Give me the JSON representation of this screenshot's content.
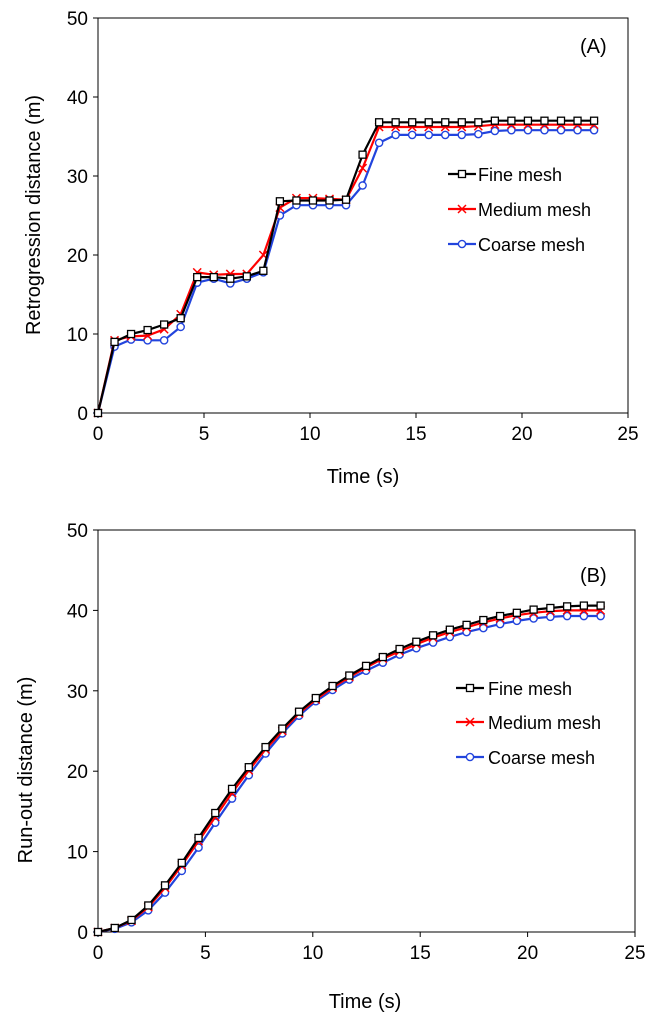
{
  "colors": {
    "fine": "#000000",
    "medium": "#ff0000",
    "coarse": "#2244dd"
  },
  "chart_data": [
    {
      "type": "line",
      "panel_label": "(A)",
      "xlabel": "Time (s)",
      "ylabel": "Retrogression distance (m)",
      "xlim": [
        0,
        25
      ],
      "ylim": [
        0,
        50
      ],
      "xticks": [
        "0",
        "5",
        "10",
        "15",
        "20",
        "25"
      ],
      "yticks": [
        "0",
        "10",
        "20",
        "30",
        "40",
        "50"
      ],
      "legend_position": "right",
      "x": [
        0,
        0.78,
        1.56,
        2.34,
        3.12,
        3.9,
        4.68,
        5.46,
        6.24,
        7.02,
        7.8,
        8.58,
        9.36,
        10.14,
        10.92,
        11.7,
        12.48,
        13.26,
        14.04,
        14.82,
        15.6,
        16.38,
        17.16,
        17.94,
        18.72,
        19.5,
        20.28,
        21.06,
        21.84,
        22.62,
        23.4
      ],
      "series": [
        {
          "name": "Fine mesh",
          "color_key": "fine",
          "marker": "square",
          "values": [
            0,
            9.0,
            10.0,
            10.5,
            11.2,
            12.0,
            17.2,
            17.2,
            17.0,
            17.3,
            18.0,
            26.8,
            26.9,
            26.9,
            26.9,
            27.0,
            32.7,
            36.8,
            36.8,
            36.8,
            36.8,
            36.8,
            36.8,
            36.8,
            37.0,
            37.0,
            37.0,
            37.0,
            37.0,
            37.0,
            37.0
          ]
        },
        {
          "name": "Medium mesh",
          "color_key": "medium",
          "marker": "x",
          "values": [
            0,
            9.2,
            9.7,
            9.8,
            10.6,
            12.5,
            17.8,
            17.5,
            17.6,
            17.6,
            20.0,
            26.0,
            27.2,
            27.2,
            27.1,
            27.0,
            31.0,
            36.2,
            36.2,
            36.2,
            36.2,
            36.2,
            36.2,
            36.3,
            36.5,
            36.5,
            36.5,
            36.5,
            36.5,
            36.5,
            36.5
          ]
        },
        {
          "name": "Coarse mesh",
          "color_key": "coarse",
          "marker": "circle",
          "values": [
            0,
            8.4,
            9.3,
            9.2,
            9.2,
            10.9,
            16.5,
            17.0,
            16.4,
            17.0,
            17.8,
            25.0,
            26.3,
            26.3,
            26.3,
            26.3,
            28.8,
            34.2,
            35.2,
            35.2,
            35.2,
            35.2,
            35.2,
            35.3,
            35.7,
            35.8,
            35.8,
            35.8,
            35.8,
            35.8,
            35.8
          ]
        }
      ]
    },
    {
      "type": "line",
      "panel_label": "(B)",
      "xlabel": "Time (s)",
      "ylabel": "Run-out distance (m)",
      "xlim": [
        0,
        25
      ],
      "ylim": [
        0,
        50
      ],
      "xticks": [
        "0",
        "5",
        "10",
        "15",
        "20",
        "25"
      ],
      "yticks": [
        "0",
        "10",
        "20",
        "30",
        "40",
        "50"
      ],
      "legend_position": "right",
      "x": [
        0,
        0.78,
        1.56,
        2.34,
        3.12,
        3.9,
        4.68,
        5.46,
        6.24,
        7.02,
        7.8,
        8.58,
        9.36,
        10.14,
        10.92,
        11.7,
        12.48,
        13.26,
        14.04,
        14.82,
        15.6,
        16.38,
        17.16,
        17.94,
        18.72,
        19.5,
        20.28,
        21.06,
        21.84,
        22.62,
        23.4
      ],
      "series": [
        {
          "name": "Fine mesh",
          "color_key": "fine",
          "marker": "square",
          "values": [
            0,
            0.5,
            1.5,
            3.3,
            5.8,
            8.6,
            11.7,
            14.8,
            17.8,
            20.5,
            23.0,
            25.3,
            27.4,
            29.1,
            30.6,
            31.9,
            33.1,
            34.2,
            35.2,
            36.1,
            36.9,
            37.6,
            38.2,
            38.8,
            39.3,
            39.7,
            40.1,
            40.3,
            40.5,
            40.6,
            40.6
          ]
        },
        {
          "name": "Medium mesh",
          "color_key": "medium",
          "marker": "x",
          "values": [
            0,
            0.5,
            1.4,
            3.1,
            5.5,
            8.3,
            11.3,
            14.3,
            17.3,
            20.1,
            22.7,
            25.0,
            27.2,
            28.9,
            30.4,
            31.7,
            32.9,
            34.0,
            34.9,
            35.8,
            36.6,
            37.3,
            37.9,
            38.5,
            39.0,
            39.4,
            39.7,
            39.9,
            40.0,
            40.0,
            40.0
          ]
        },
        {
          "name": "Coarse mesh",
          "color_key": "coarse",
          "marker": "circle",
          "values": [
            0,
            0.4,
            1.2,
            2.7,
            4.9,
            7.6,
            10.5,
            13.6,
            16.6,
            19.5,
            22.2,
            24.7,
            26.9,
            28.7,
            30.1,
            31.4,
            32.5,
            33.5,
            34.5,
            35.3,
            36.0,
            36.7,
            37.3,
            37.8,
            38.3,
            38.7,
            39.0,
            39.2,
            39.3,
            39.3,
            39.3
          ]
        }
      ]
    }
  ]
}
